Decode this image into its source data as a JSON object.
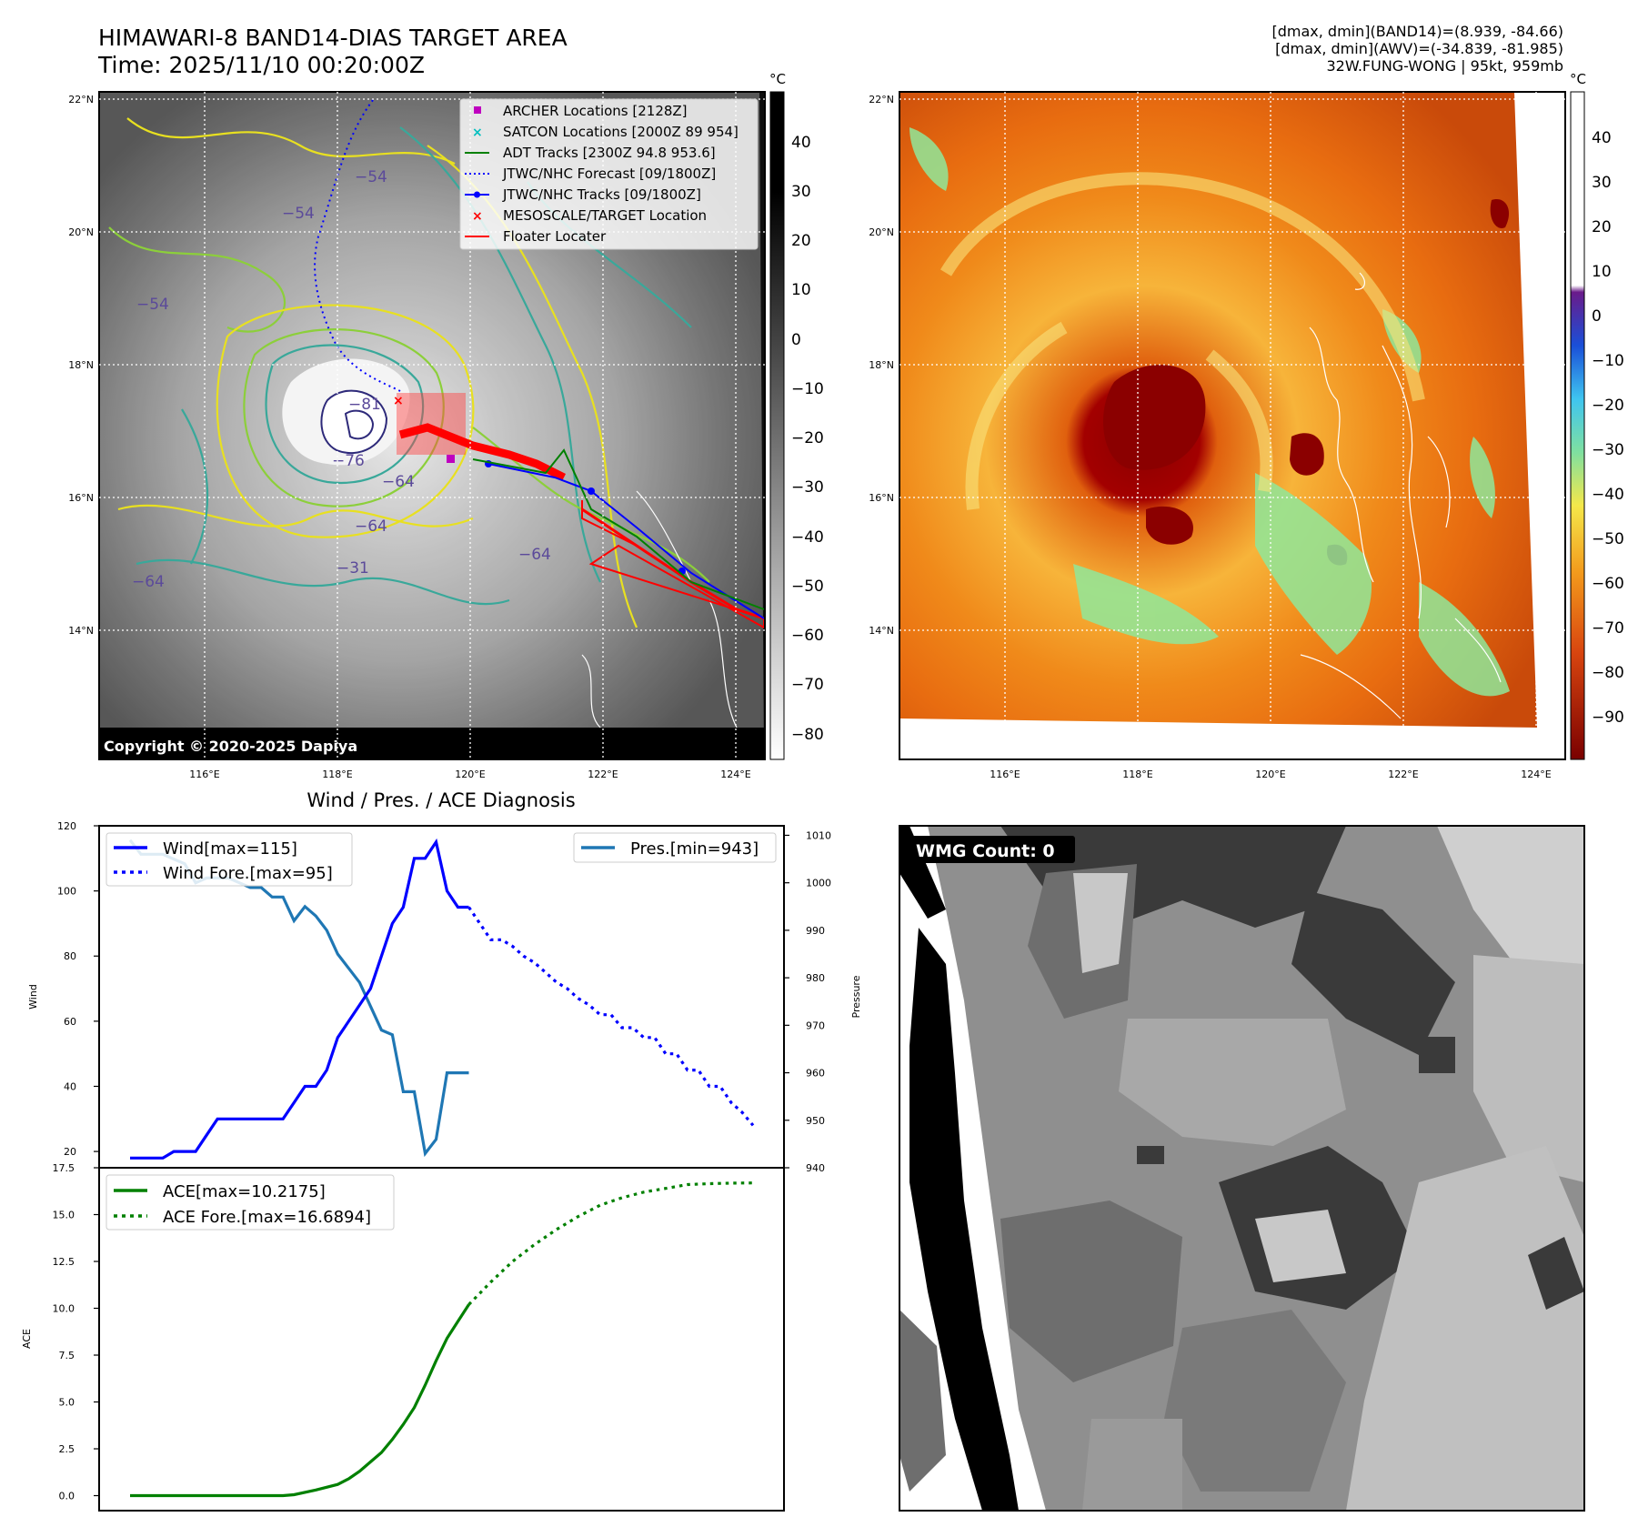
{
  "header": {
    "title_line1": "HIMAWARI-8 BAND14-DIAS TARGET AREA",
    "title_line2": "Time: 2025/11/10 00:20:00Z",
    "info_line1": "[dmax, dmin](BAND14)=(8.939, -84.66)",
    "info_line2": "[dmax, dmin](AWV)=(-34.839, -81.985)",
    "info_line3": "32W.FUNG-WONG | 95kt, 959mb"
  },
  "colors": {
    "wind": "#0000ff",
    "pressure": "#1f77b4",
    "ace": "#008000",
    "archer": "#bf00bf",
    "satcon": "#00bfbf",
    "adt": "#008000",
    "jtwc": "#0000ff",
    "target": "#ff0000",
    "floater": "#ff0000"
  },
  "map_common": {
    "lat_ticks": [
      "22°N",
      "20°N",
      "18°N",
      "16°N",
      "14°N"
    ],
    "lon_ticks": [
      "116°E",
      "118°E",
      "120°E",
      "122°E",
      "124°E"
    ],
    "colorbar_unit": "°C"
  },
  "map_ir": {
    "colorbar_ticks": [
      "40",
      "30",
      "20",
      "10",
      "0",
      "−10",
      "−20",
      "−30",
      "−40",
      "−50",
      "−60",
      "−70",
      "−80"
    ],
    "contour_labels": [
      "−81",
      "−76",
      "−64",
      "−54",
      "−54",
      "−54",
      "−64",
      "−64",
      "−31",
      "−64"
    ],
    "copyright": "Copyright © 2020-2025 Dapiya",
    "legend": [
      {
        "label": "ARCHER Locations [2128Z]",
        "icon": "square-marker",
        "color": "#bf00bf"
      },
      {
        "label": "SATCON Locations [2000Z 89 954]",
        "icon": "x-marker",
        "color": "#00bfbf"
      },
      {
        "label": "ADT Tracks [2300Z 94.8 953.6]",
        "icon": "solid-line",
        "color": "#008000"
      },
      {
        "label": "JTWC/NHC Forecast [09/1800Z]",
        "icon": "dotted-line",
        "color": "#0000ff"
      },
      {
        "label": "JTWC/NHC Tracks [09/1800Z]",
        "icon": "line-dot",
        "color": "#0000ff"
      },
      {
        "label": "MESOSCALE/TARGET Location",
        "icon": "x-marker",
        "color": "#ff0000"
      },
      {
        "label": "Floater Locater",
        "icon": "solid-line",
        "color": "#ff0000"
      }
    ]
  },
  "map_awv": {
    "colorbar_ticks": [
      "40",
      "30",
      "20",
      "10",
      "0",
      "−10",
      "−20",
      "−30",
      "−40",
      "−50",
      "−60",
      "−70",
      "−80",
      "−90"
    ]
  },
  "wmg_panel": {
    "label": "WMG Count: 0"
  },
  "chart_data": [
    {
      "type": "line",
      "title": "Wind / Pres. / ACE Diagnosis",
      "ylabel": "Wind",
      "ylabel_right": "Pressure",
      "ylim": [
        15,
        120
      ],
      "ylim_right": [
        940,
        1012
      ],
      "yticks": [
        20,
        40,
        60,
        80,
        100,
        120
      ],
      "yticks_right": [
        940,
        950,
        960,
        970,
        980,
        990,
        1000,
        1010
      ],
      "x_range": [
        0,
        57
      ],
      "series": [
        {
          "name": "Wind[max=115]",
          "axis": "left",
          "style": "solid",
          "x": [
            0,
            1,
            2,
            3,
            4,
            5,
            6,
            7,
            8,
            9,
            10,
            11,
            12,
            13,
            14,
            15,
            16,
            17,
            18,
            19,
            20,
            21,
            22,
            23,
            24,
            25,
            26,
            27,
            28,
            29,
            30,
            31
          ],
          "values": [
            18,
            18,
            18,
            18,
            20,
            20,
            20,
            25,
            30,
            30,
            30,
            30,
            30,
            30,
            30,
            35,
            40,
            40,
            45,
            55,
            60,
            65,
            70,
            80,
            90,
            95,
            110,
            110,
            115,
            100,
            95,
            95
          ]
        },
        {
          "name": "Wind Fore.[max=95]",
          "axis": "left",
          "style": "dotted",
          "x": [
            31,
            32,
            33,
            34,
            35,
            36,
            37,
            38,
            39,
            40,
            41,
            42,
            43,
            44,
            45,
            46,
            47,
            48,
            49,
            50,
            51,
            52,
            53,
            54,
            55,
            56,
            57
          ],
          "values": [
            95,
            90,
            85,
            85,
            83,
            80,
            78,
            75,
            72,
            70,
            67,
            65,
            62,
            62,
            58,
            58,
            55,
            55,
            50,
            50,
            45,
            45,
            40,
            40,
            35,
            32,
            28
          ]
        },
        {
          "name": "Pres.[min=943]",
          "axis": "right",
          "style": "solid",
          "x": [
            0,
            1,
            2,
            3,
            4,
            5,
            6,
            7,
            8,
            9,
            10,
            11,
            12,
            13,
            14,
            15,
            16,
            17,
            18,
            19,
            20,
            21,
            22,
            23,
            24,
            25,
            26,
            27,
            28,
            29,
            30,
            31
          ],
          "values": [
            1009,
            1006,
            1006,
            1006,
            1005,
            1004,
            1000,
            1001,
            1001,
            1001,
            1000,
            999,
            999,
            997,
            997,
            992,
            995,
            993,
            990,
            985,
            982,
            979,
            974,
            969,
            968,
            956,
            956,
            943,
            946,
            960,
            960,
            960
          ]
        }
      ]
    },
    {
      "type": "line",
      "ylabel": "ACE",
      "ylim": [
        -0.8,
        17.5
      ],
      "yticks": [
        0.0,
        2.5,
        5.0,
        7.5,
        10.0,
        12.5,
        15.0,
        17.5
      ],
      "x_range": [
        0,
        57
      ],
      "series": [
        {
          "name": "ACE[max=10.2175]",
          "style": "solid",
          "x": [
            0,
            2,
            4,
            6,
            8,
            10,
            12,
            14,
            15,
            17,
            19,
            20,
            21,
            22,
            23,
            24,
            25,
            26,
            27,
            28,
            29,
            30,
            31
          ],
          "values": [
            0,
            0,
            0,
            0,
            0,
            0,
            0,
            0,
            0.05,
            0.3,
            0.6,
            0.9,
            1.3,
            1.8,
            2.3,
            3.0,
            3.8,
            4.7,
            5.9,
            7.2,
            8.4,
            9.3,
            10.2
          ]
        },
        {
          "name": "ACE Fore.[max=16.6894]",
          "style": "dotted",
          "x": [
            31,
            33,
            35,
            37,
            39,
            41,
            43,
            45,
            47,
            49,
            51,
            53,
            55,
            57
          ],
          "values": [
            10.2,
            11.4,
            12.5,
            13.4,
            14.2,
            14.9,
            15.5,
            15.9,
            16.2,
            16.4,
            16.6,
            16.65,
            16.68,
            16.69
          ]
        }
      ]
    }
  ]
}
